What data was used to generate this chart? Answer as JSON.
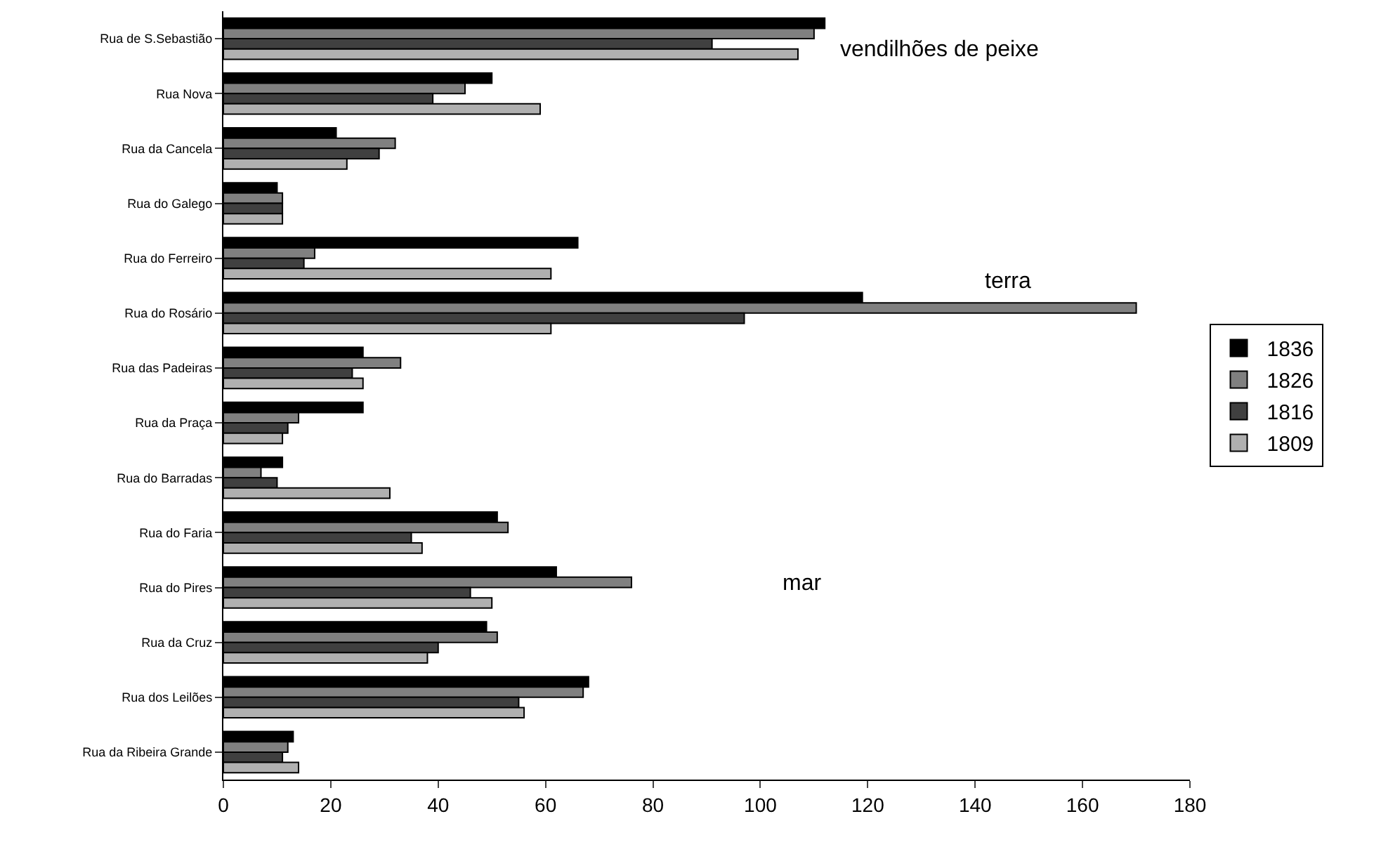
{
  "chart_data": {
    "type": "bar",
    "orientation": "horizontal",
    "categories": [
      "Rua de S.Sebastião",
      "Rua Nova",
      "Rua da Cancela",
      "Rua do Galego",
      "Rua do Ferreiro",
      "Rua do Rosário",
      "Rua das Padeiras",
      "Rua da Praça",
      "Rua do Barradas",
      "Rua do Faria",
      "Rua do Pires",
      "Rua da Cruz",
      "Rua dos Leilões",
      "Rua da Ribeira Grande"
    ],
    "series": [
      {
        "name": "1836",
        "color": "#000000",
        "values": [
          112,
          50,
          21,
          10,
          66,
          119,
          26,
          26,
          11,
          51,
          62,
          49,
          68,
          13
        ]
      },
      {
        "name": "1826",
        "color": "#808080",
        "values": [
          110,
          45,
          32,
          11,
          17,
          170,
          33,
          14,
          7,
          53,
          76,
          51,
          67,
          12
        ]
      },
      {
        "name": "1816",
        "color": "#404040",
        "values": [
          91,
          39,
          29,
          11,
          15,
          97,
          24,
          12,
          10,
          35,
          46,
          40,
          55,
          11
        ]
      },
      {
        "name": "1809",
        "color": "#b0b0b0",
        "values": [
          107,
          59,
          23,
          11,
          61,
          61,
          26,
          11,
          31,
          37,
          50,
          38,
          56,
          14
        ]
      }
    ],
    "xlim": [
      0,
      180
    ],
    "xticks": [
      0,
      20,
      40,
      60,
      80,
      100,
      120,
      140,
      160,
      180
    ],
    "grid": false,
    "legend": "right",
    "annotations": [
      "vendilhões de peixe",
      "terra",
      "mar"
    ]
  }
}
